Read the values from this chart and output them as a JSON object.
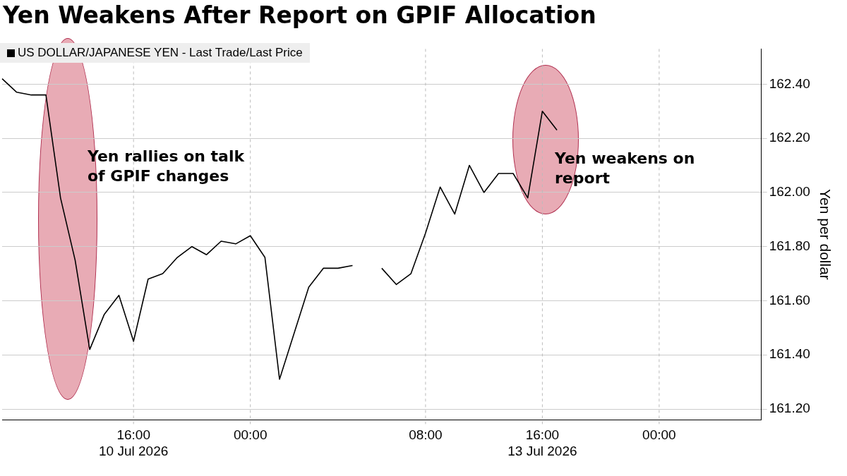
{
  "chart_data": {
    "type": "line",
    "title": "Yen Weakens After Report on GPIF Allocation",
    "ylabel": "Yen per dollar",
    "legend": "top left",
    "grid": true,
    "marker": "none",
    "line_style": "solid",
    "annotations": [
      "Yen rallies on talk\nof GPIF changes",
      "Yen weakens on\nreport"
    ],
    "categories": [
      null,
      null,
      null,
      null,
      null,
      null,
      null,
      null,
      null,
      "16:00\n10 Jul 2026",
      null,
      null,
      null,
      null,
      null,
      null,
      null,
      "00:00",
      null,
      null,
      null,
      null,
      null,
      null,
      null,
      null,
      null,
      null,
      null,
      "08:00",
      null,
      null,
      null,
      null,
      null,
      null,
      null,
      "16:00\n13 Jul 2026",
      null,
      null,
      null,
      null,
      null,
      null,
      null,
      "00:00",
      null,
      null,
      null,
      null,
      null,
      null,
      null
    ],
    "ylim": [
      161.16,
      162.53
    ],
    "yticks": [
      {
        "value": 161.2,
        "label": "161.20"
      },
      {
        "value": 161.4,
        "label": "161.40"
      },
      {
        "value": 161.6,
        "label": "161.60"
      },
      {
        "value": 161.8,
        "label": "161.80"
      },
      {
        "value": 162.0,
        "label": "162.00"
      },
      {
        "value": 162.2,
        "label": "162.20"
      },
      {
        "value": 162.4,
        "label": "162.40"
      }
    ],
    "series": [
      {
        "name": "US DOLLAR/JAPANESE YEN - Last Trade/Last Price",
        "color": "#000000",
        "values": [
          162.42,
          162.37,
          162.36,
          162.36,
          161.98,
          161.75,
          161.42,
          161.55,
          161.62,
          161.45,
          161.68,
          161.7,
          161.76,
          161.8,
          161.77,
          161.82,
          161.81,
          161.84,
          161.76,
          161.31,
          161.48,
          161.65,
          161.72,
          161.72,
          161.73,
          null,
          161.72,
          161.66,
          161.7,
          161.85,
          162.02,
          161.92,
          162.1,
          162.0,
          162.07,
          162.07,
          161.98,
          162.3,
          162.23,
          null,
          null,
          null,
          null,
          null,
          null,
          null,
          null,
          null,
          null,
          null,
          null,
          null,
          null
        ]
      }
    ]
  }
}
